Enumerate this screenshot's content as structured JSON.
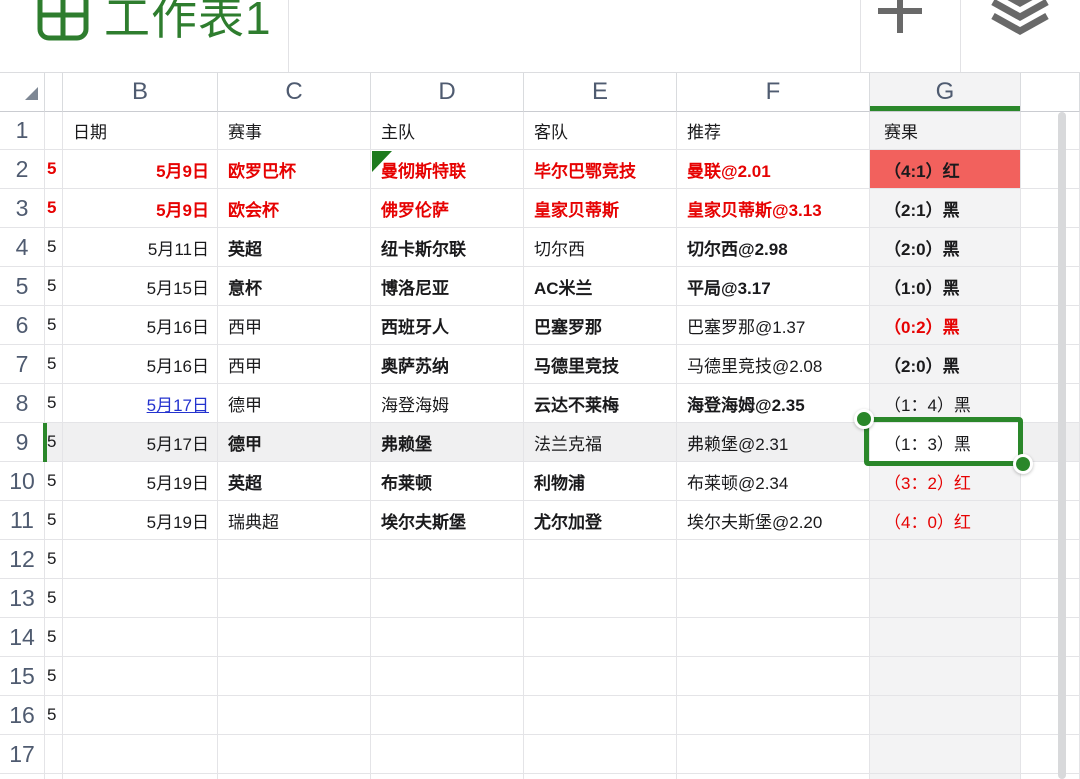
{
  "app": {
    "sheet_title": "工作表1"
  },
  "icons": {
    "logo": "sheet-grid-icon",
    "add": "plus-icon",
    "sheets": "layers-icon",
    "select_all": "corner-triangle-icon",
    "comment_flag": "green-corner-flag-icon"
  },
  "columns": {
    "letters": [
      "B",
      "C",
      "D",
      "E",
      "F",
      "G"
    ],
    "selected_letter": "G"
  },
  "selection": {
    "cell": "G9",
    "row": "9",
    "column": "G",
    "value": "（1：3）黑"
  },
  "rows": [
    {
      "n": "1",
      "cells": {
        "B": {
          "t": "日期"
        },
        "C": {
          "t": "赛事"
        },
        "D": {
          "t": "主队"
        },
        "E": {
          "t": "客队"
        },
        "F": {
          "t": "推荐"
        },
        "G": {
          "t": "赛果"
        }
      }
    },
    {
      "n": "2",
      "cells": {
        "A": {
          "t": "5",
          "red": true,
          "bold": true
        },
        "B": {
          "t": "5月9日",
          "red": true,
          "bold": true,
          "right": true
        },
        "C": {
          "t": "欧罗巴杯",
          "red": true,
          "bold": true
        },
        "D": {
          "t": "曼彻斯特联",
          "red": true,
          "bold": true,
          "flag": true
        },
        "E": {
          "t": "毕尔巴鄂竞技",
          "red": true,
          "bold": true
        },
        "F": {
          "t": "曼联@2.01",
          "red": true,
          "bold": true
        },
        "G": {
          "t": "（4:1）红",
          "bold": true,
          "fill": "red"
        }
      }
    },
    {
      "n": "3",
      "cells": {
        "A": {
          "t": "5",
          "red": true,
          "bold": true
        },
        "B": {
          "t": "5月9日",
          "red": true,
          "bold": true,
          "right": true
        },
        "C": {
          "t": "欧会杯",
          "red": true,
          "bold": true
        },
        "D": {
          "t": "佛罗伦萨",
          "red": true,
          "bold": true
        },
        "E": {
          "t": "皇家贝蒂斯",
          "red": true,
          "bold": true
        },
        "F": {
          "t": "皇家贝蒂斯@3.13",
          "red": true,
          "bold": true
        },
        "G": {
          "t": "（2:1）黑",
          "bold": true
        }
      }
    },
    {
      "n": "4",
      "cells": {
        "A": {
          "t": "5"
        },
        "B": {
          "t": "5月11日",
          "right": true
        },
        "C": {
          "t": "英超",
          "bold": true
        },
        "D": {
          "t": "纽卡斯尔联",
          "bold": true
        },
        "E": {
          "t": "切尔西"
        },
        "F": {
          "t": "切尔西@2.98",
          "bold": true
        },
        "G": {
          "t": "（2:0）黑",
          "bold": true
        }
      }
    },
    {
      "n": "5",
      "cells": {
        "A": {
          "t": "5"
        },
        "B": {
          "t": "5月15日",
          "right": true
        },
        "C": {
          "t": "意杯",
          "bold": true
        },
        "D": {
          "t": "博洛尼亚",
          "bold": true
        },
        "E": {
          "t": "AC米兰",
          "bold": true
        },
        "F": {
          "t": "平局@3.17",
          "bold": true
        },
        "G": {
          "t": "（1:0）黑",
          "bold": true
        }
      }
    },
    {
      "n": "6",
      "cells": {
        "A": {
          "t": "5"
        },
        "B": {
          "t": "5月16日",
          "right": true
        },
        "C": {
          "t": "西甲"
        },
        "D": {
          "t": "西班牙人",
          "bold": true
        },
        "E": {
          "t": "巴塞罗那",
          "bold": true
        },
        "F": {
          "t": "巴塞罗那@1.37"
        },
        "G": {
          "t": "（0:2）黑",
          "bold": true,
          "red": true
        }
      }
    },
    {
      "n": "7",
      "cells": {
        "A": {
          "t": "5"
        },
        "B": {
          "t": "5月16日",
          "right": true
        },
        "C": {
          "t": "西甲"
        },
        "D": {
          "t": "奥萨苏纳",
          "bold": true
        },
        "E": {
          "t": "马德里竞技",
          "bold": true
        },
        "F": {
          "t": "马德里竞技@2.08"
        },
        "G": {
          "t": "（2:0）黑",
          "bold": true
        }
      }
    },
    {
      "n": "8",
      "cells": {
        "A": {
          "t": "5"
        },
        "B": {
          "t": "5月17日",
          "link": true,
          "right": true
        },
        "C": {
          "t": "德甲"
        },
        "D": {
          "t": "海登海姆"
        },
        "E": {
          "t": "云达不莱梅",
          "bold": true
        },
        "F": {
          "t": "海登海姆@2.35",
          "bold": true
        },
        "G": {
          "t": "（1：4）黑"
        }
      }
    },
    {
      "n": "9",
      "cells": {
        "A": {
          "t": "5"
        },
        "B": {
          "t": "5月17日",
          "right": true
        },
        "C": {
          "t": "德甲",
          "bold": true
        },
        "D": {
          "t": "弗赖堡",
          "bold": true
        },
        "E": {
          "t": "法兰克福"
        },
        "F": {
          "t": "弗赖堡@2.31"
        },
        "G": {
          "t": "（1：3）黑",
          "selected": true
        }
      }
    },
    {
      "n": "10",
      "cells": {
        "A": {
          "t": "5"
        },
        "B": {
          "t": "5月19日",
          "right": true
        },
        "C": {
          "t": "英超",
          "bold": true
        },
        "D": {
          "t": "布莱顿",
          "bold": true
        },
        "E": {
          "t": "利物浦",
          "bold": true
        },
        "F": {
          "t": "布莱顿@2.34"
        },
        "G": {
          "t": "（3：2）红",
          "red": true
        }
      }
    },
    {
      "n": "11",
      "cells": {
        "A": {
          "t": "5"
        },
        "B": {
          "t": "5月19日",
          "right": true
        },
        "C": {
          "t": "瑞典超"
        },
        "D": {
          "t": "埃尔夫斯堡",
          "bold": true
        },
        "E": {
          "t": "尤尔加登",
          "bold": true
        },
        "F": {
          "t": "埃尔夫斯堡@2.20"
        },
        "G": {
          "t": "（4：0）红",
          "red": true
        }
      }
    },
    {
      "n": "12",
      "cells": {
        "A": {
          "t": "5"
        }
      }
    },
    {
      "n": "13",
      "cells": {
        "A": {
          "t": "5"
        }
      }
    },
    {
      "n": "14",
      "cells": {
        "A": {
          "t": "5"
        }
      }
    },
    {
      "n": "15",
      "cells": {
        "A": {
          "t": "5"
        }
      }
    },
    {
      "n": "16",
      "cells": {
        "A": {
          "t": "5"
        }
      }
    },
    {
      "n": "17",
      "cells": {}
    },
    {
      "n": "",
      "cells": {}
    }
  ],
  "colors": {
    "brand_green": "#2e7d2e",
    "selection_green": "#2a872a",
    "red_text": "#e60202",
    "red_fill": "#f2615d",
    "link_blue": "#2433cf",
    "column_highlight": "#f3f3f4",
    "row_highlight": "#f0f0f1",
    "grid_line": "#e4e4e7",
    "header_text": "#4f5b70",
    "scrollbar": "#d8d9db"
  }
}
